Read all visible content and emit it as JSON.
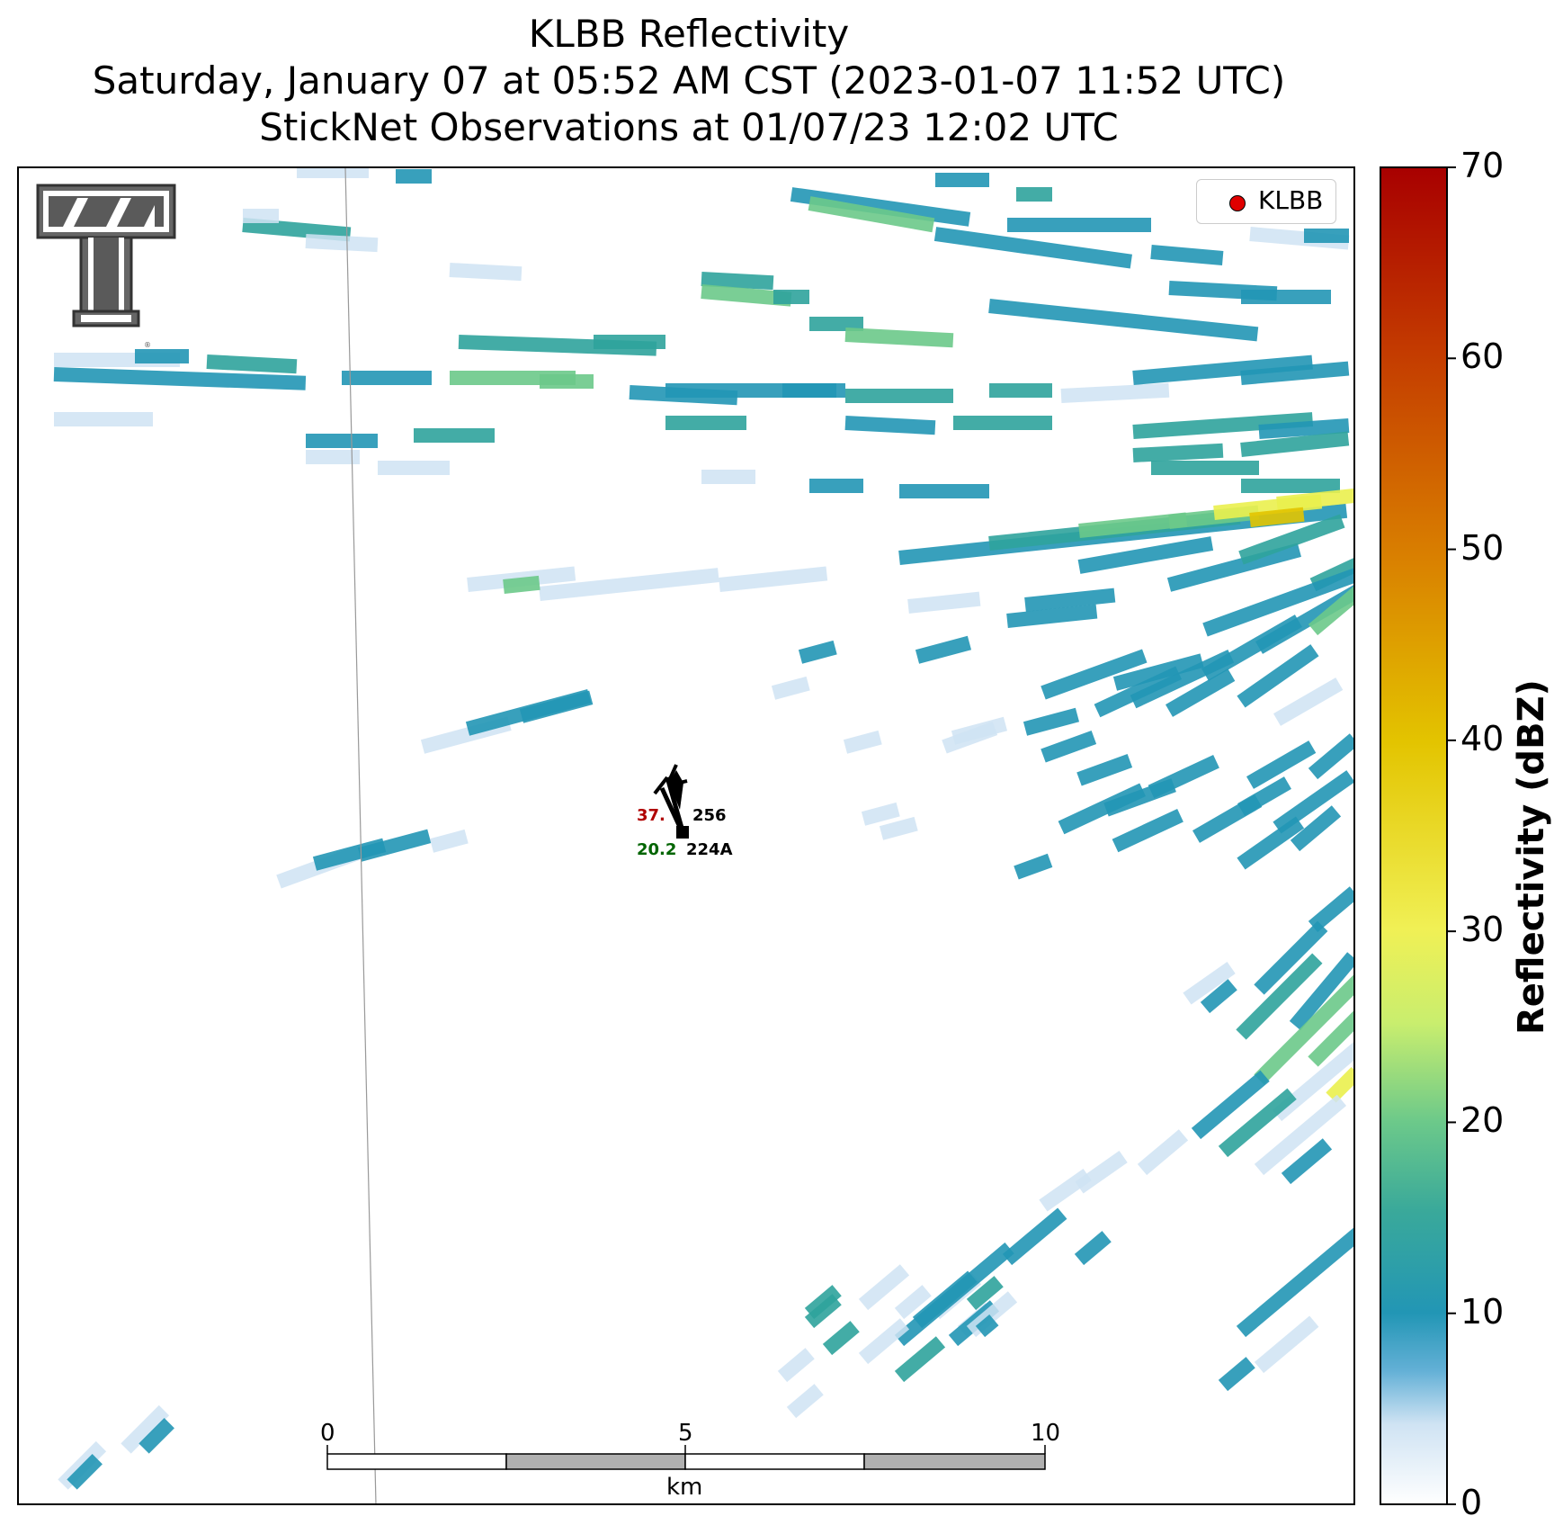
{
  "title": {
    "line1": "KLBB Reflectivity",
    "line2": "Saturday, January 07 at 05:52 AM CST (2023-01-07 11:52 UTC)",
    "line3": "StickNet Observations at 01/07/23 12:02 UTC"
  },
  "legend": {
    "label": "KLBB",
    "marker_color": "#e00000"
  },
  "colorbar": {
    "label": "Reflectivity (dBZ)",
    "ticks": [
      "0",
      "10",
      "20",
      "30",
      "40",
      "50",
      "60",
      "70"
    ],
    "colors": [
      "#ffffff",
      "#cfe3f3",
      "#63b0d6",
      "#2296b5",
      "#3aa99a",
      "#6cc98a",
      "#c9ee6e",
      "#f0f055",
      "#e3c400",
      "#d97f00",
      "#c43c00",
      "#a80000"
    ]
  },
  "scale_bar": {
    "ticks": [
      "0",
      "5",
      "10"
    ],
    "unit": "km"
  },
  "stations": [
    {
      "id": "256",
      "temp": "37.",
      "dew": "",
      "id2": "224A",
      "dew2": "20.2"
    }
  ],
  "logo": {
    "name": "texas-tech-logo"
  },
  "colors": {
    "low": "#cfe3f3",
    "mid": "#2296b5",
    "teal": "#2fa39c",
    "green": "#6cc98a",
    "yellow": "#eaf04e",
    "gold": "#e3c400"
  }
}
